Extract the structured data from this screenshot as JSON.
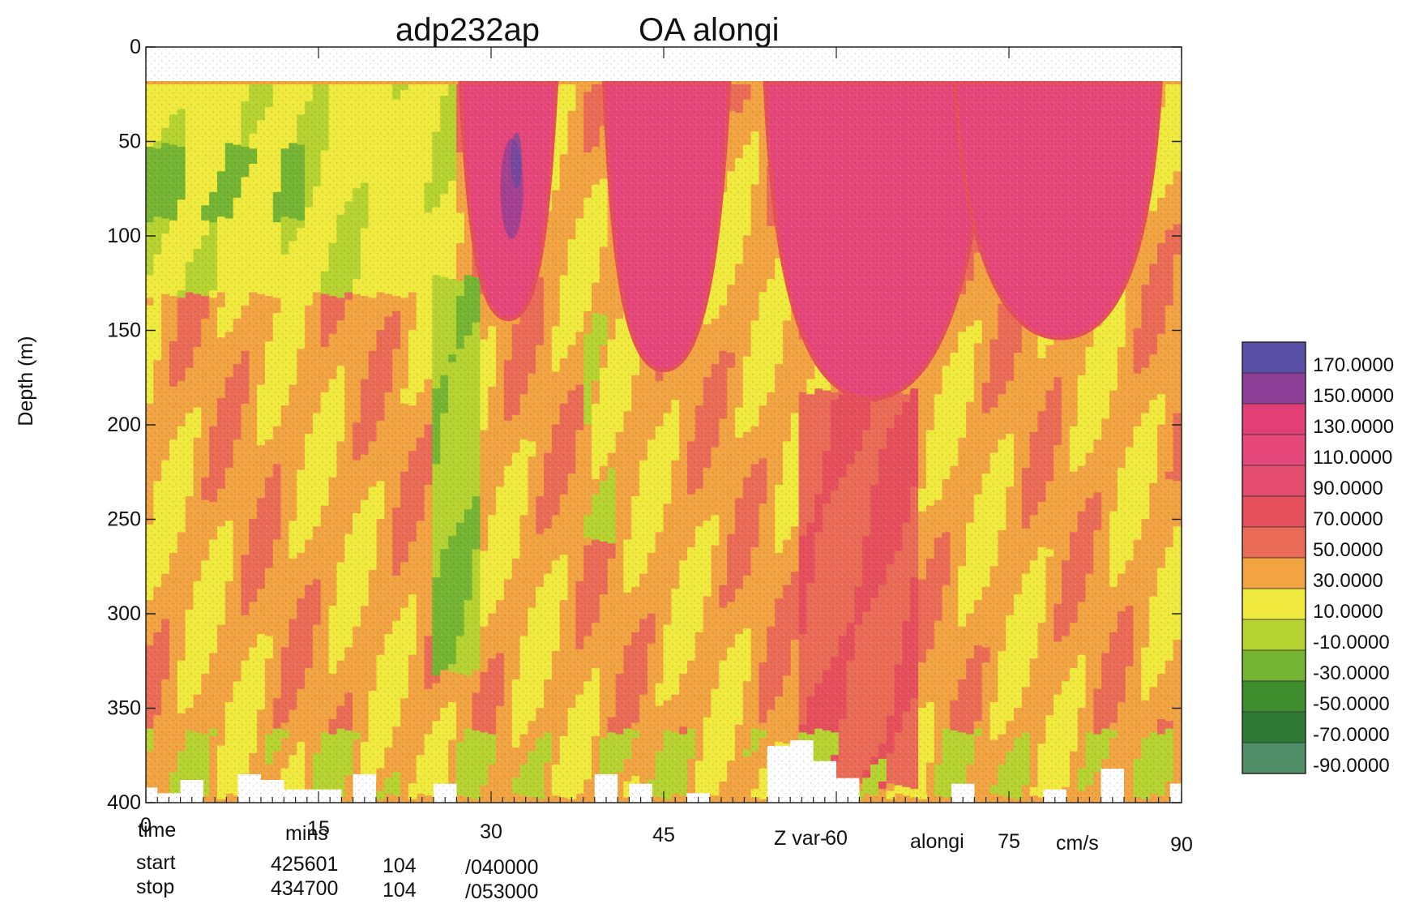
{
  "chart_data": {
    "type": "heatmap",
    "title": "adp232ap",
    "subtitle": "OA  alongi",
    "ylabel": "Depth (m)",
    "xlabel": "time",
    "xlabel2": "mins",
    "var_label": "Z var-",
    "var_name": "alongi",
    "units": "cm/s",
    "x_ticks": [
      "0",
      "15",
      "30",
      "45",
      "60",
      "75",
      "90"
    ],
    "y_ticks": [
      "0",
      "50",
      "100",
      "150",
      "200",
      "250",
      "300",
      "350",
      "400"
    ],
    "xlim": [
      0,
      90
    ],
    "ylim": [
      400,
      0
    ],
    "grid": false,
    "legend_position": "right",
    "info": {
      "start_label": "start",
      "start_a": "425601",
      "start_b": "104",
      "start_c": "/040000",
      "stop_label": "stop",
      "stop_a": "434700",
      "stop_b": "104",
      "stop_c": "/053000"
    },
    "legend": [
      {
        "label": "170.0000",
        "color": "#5a4fa6"
      },
      {
        "label": "150.0000",
        "color": "#8d3f98"
      },
      {
        "label": "130.0000",
        "color": "#e33f77"
      },
      {
        "label": "110.0000",
        "color": "#e5477a"
      },
      {
        "label": "90.0000",
        "color": "#e44c70"
      },
      {
        "label": "70.0000",
        "color": "#e6505d"
      },
      {
        "label": "50.0000",
        "color": "#ea6c56"
      },
      {
        "label": "30.0000",
        "color": "#f2a443"
      },
      {
        "label": "10.0000",
        "color": "#f1ea3e"
      },
      {
        "label": "-10.0000",
        "color": "#b7d332"
      },
      {
        "label": "-30.0000",
        "color": "#76b434"
      },
      {
        "label": "-50.0000",
        "color": "#3f8e2e"
      },
      {
        "label": "-70.0000",
        "color": "#2e7a35"
      },
      {
        "label": "-90.0000",
        "color": "#4f8e66"
      }
    ],
    "troughs": [
      {
        "x_min": 27.5,
        "x_max": 35.5,
        "x_center": 31.5,
        "depth_bottom": 143,
        "peak": 160
      },
      {
        "x_min": 40.0,
        "x_max": 50.5,
        "x_center": 45.0,
        "depth_bottom": 170,
        "peak": 120
      },
      {
        "x_min": 54.0,
        "x_max": 73.0,
        "x_center": 63.0,
        "depth_bottom": 185,
        "peak": 120
      },
      {
        "x_min": 70.5,
        "x_max": 88.0,
        "x_center": 79.5,
        "depth_bottom": 153,
        "peak": 120
      }
    ]
  }
}
